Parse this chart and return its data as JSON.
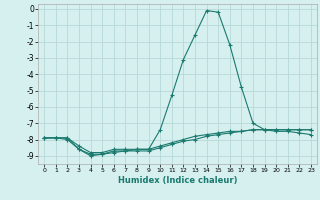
{
  "title": "",
  "xlabel": "Humidex (Indice chaleur)",
  "ylabel": "",
  "background_color": "#d6f0f0",
  "grid_color": "#b8d8d8",
  "line_color": "#1a7a6e",
  "xlim": [
    -0.5,
    23.5
  ],
  "ylim": [
    -9.5,
    0.3
  ],
  "xticks": [
    0,
    1,
    2,
    3,
    4,
    5,
    6,
    7,
    8,
    9,
    10,
    11,
    12,
    13,
    14,
    15,
    16,
    17,
    18,
    19,
    20,
    21,
    22,
    23
  ],
  "yticks": [
    0,
    -1,
    -2,
    -3,
    -4,
    -5,
    -6,
    -7,
    -8,
    -9
  ],
  "series": [
    [
      [
        0,
        -7.9
      ],
      [
        1,
        -7.9
      ],
      [
        2,
        -7.9
      ],
      [
        3,
        -8.4
      ],
      [
        4,
        -8.8
      ],
      [
        5,
        -8.8
      ],
      [
        6,
        -8.6
      ],
      [
        7,
        -8.6
      ],
      [
        8,
        -8.6
      ],
      [
        9,
        -8.6
      ],
      [
        10,
        -7.4
      ],
      [
        11,
        -5.3
      ],
      [
        12,
        -3.1
      ],
      [
        13,
        -1.6
      ],
      [
        14,
        -0.1
      ],
      [
        15,
        -0.2
      ],
      [
        16,
        -2.2
      ],
      [
        17,
        -4.8
      ],
      [
        18,
        -7.0
      ],
      [
        19,
        -7.4
      ],
      [
        20,
        -7.5
      ],
      [
        21,
        -7.5
      ],
      [
        22,
        -7.6
      ],
      [
        23,
        -7.7
      ]
    ],
    [
      [
        0,
        -7.9
      ],
      [
        1,
        -7.9
      ],
      [
        2,
        -7.9
      ],
      [
        3,
        -8.6
      ],
      [
        4,
        -9.0
      ],
      [
        5,
        -8.9
      ],
      [
        6,
        -8.8
      ],
      [
        7,
        -8.7
      ],
      [
        8,
        -8.7
      ],
      [
        9,
        -8.7
      ],
      [
        10,
        -8.5
      ],
      [
        11,
        -8.3
      ],
      [
        12,
        -8.1
      ],
      [
        13,
        -8.0
      ],
      [
        14,
        -7.8
      ],
      [
        15,
        -7.7
      ],
      [
        16,
        -7.6
      ],
      [
        17,
        -7.5
      ],
      [
        18,
        -7.4
      ],
      [
        19,
        -7.4
      ],
      [
        20,
        -7.4
      ],
      [
        21,
        -7.4
      ],
      [
        22,
        -7.4
      ],
      [
        23,
        -7.4
      ]
    ],
    [
      [
        0,
        -7.9
      ],
      [
        1,
        -7.9
      ],
      [
        2,
        -8.0
      ],
      [
        3,
        -8.6
      ],
      [
        4,
        -8.9
      ],
      [
        5,
        -8.9
      ],
      [
        6,
        -8.7
      ],
      [
        7,
        -8.7
      ],
      [
        8,
        -8.6
      ],
      [
        9,
        -8.6
      ],
      [
        10,
        -8.4
      ],
      [
        11,
        -8.2
      ],
      [
        12,
        -8.0
      ],
      [
        13,
        -7.8
      ],
      [
        14,
        -7.7
      ],
      [
        15,
        -7.6
      ],
      [
        16,
        -7.5
      ],
      [
        17,
        -7.5
      ],
      [
        18,
        -7.4
      ],
      [
        19,
        -7.4
      ],
      [
        20,
        -7.4
      ],
      [
        21,
        -7.4
      ],
      [
        22,
        -7.4
      ],
      [
        23,
        -7.4
      ]
    ]
  ]
}
